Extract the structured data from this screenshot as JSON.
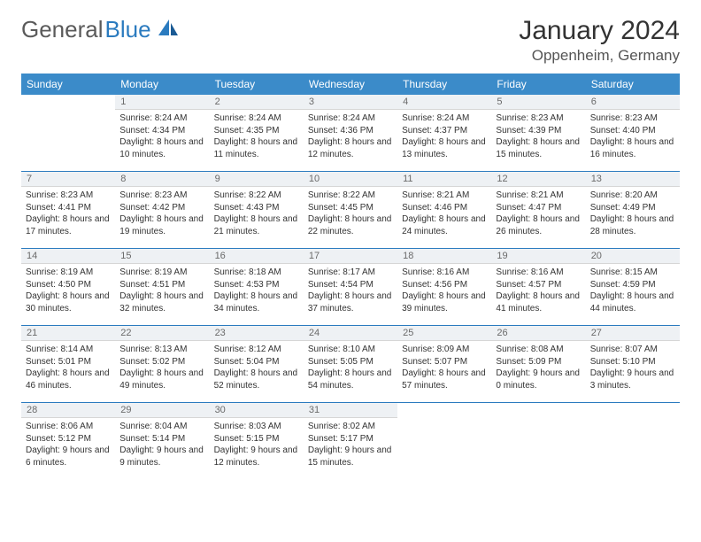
{
  "logo": {
    "part1": "General",
    "part2": "Blue"
  },
  "title": "January 2024",
  "location": "Oppenheim, Germany",
  "weekdays": [
    "Sunday",
    "Monday",
    "Tuesday",
    "Wednesday",
    "Thursday",
    "Friday",
    "Saturday"
  ],
  "colors": {
    "header_bg": "#3b8bc9",
    "divider": "#2b7bbf",
    "daynum_bg": "#eef1f4"
  },
  "weeks": [
    [
      null,
      {
        "n": "1",
        "sr": "Sunrise: 8:24 AM",
        "ss": "Sunset: 4:34 PM",
        "dl": "Daylight: 8 hours and 10 minutes."
      },
      {
        "n": "2",
        "sr": "Sunrise: 8:24 AM",
        "ss": "Sunset: 4:35 PM",
        "dl": "Daylight: 8 hours and 11 minutes."
      },
      {
        "n": "3",
        "sr": "Sunrise: 8:24 AM",
        "ss": "Sunset: 4:36 PM",
        "dl": "Daylight: 8 hours and 12 minutes."
      },
      {
        "n": "4",
        "sr": "Sunrise: 8:24 AM",
        "ss": "Sunset: 4:37 PM",
        "dl": "Daylight: 8 hours and 13 minutes."
      },
      {
        "n": "5",
        "sr": "Sunrise: 8:23 AM",
        "ss": "Sunset: 4:39 PM",
        "dl": "Daylight: 8 hours and 15 minutes."
      },
      {
        "n": "6",
        "sr": "Sunrise: 8:23 AM",
        "ss": "Sunset: 4:40 PM",
        "dl": "Daylight: 8 hours and 16 minutes."
      }
    ],
    [
      {
        "n": "7",
        "sr": "Sunrise: 8:23 AM",
        "ss": "Sunset: 4:41 PM",
        "dl": "Daylight: 8 hours and 17 minutes."
      },
      {
        "n": "8",
        "sr": "Sunrise: 8:23 AM",
        "ss": "Sunset: 4:42 PM",
        "dl": "Daylight: 8 hours and 19 minutes."
      },
      {
        "n": "9",
        "sr": "Sunrise: 8:22 AM",
        "ss": "Sunset: 4:43 PM",
        "dl": "Daylight: 8 hours and 21 minutes."
      },
      {
        "n": "10",
        "sr": "Sunrise: 8:22 AM",
        "ss": "Sunset: 4:45 PM",
        "dl": "Daylight: 8 hours and 22 minutes."
      },
      {
        "n": "11",
        "sr": "Sunrise: 8:21 AM",
        "ss": "Sunset: 4:46 PM",
        "dl": "Daylight: 8 hours and 24 minutes."
      },
      {
        "n": "12",
        "sr": "Sunrise: 8:21 AM",
        "ss": "Sunset: 4:47 PM",
        "dl": "Daylight: 8 hours and 26 minutes."
      },
      {
        "n": "13",
        "sr": "Sunrise: 8:20 AM",
        "ss": "Sunset: 4:49 PM",
        "dl": "Daylight: 8 hours and 28 minutes."
      }
    ],
    [
      {
        "n": "14",
        "sr": "Sunrise: 8:19 AM",
        "ss": "Sunset: 4:50 PM",
        "dl": "Daylight: 8 hours and 30 minutes."
      },
      {
        "n": "15",
        "sr": "Sunrise: 8:19 AM",
        "ss": "Sunset: 4:51 PM",
        "dl": "Daylight: 8 hours and 32 minutes."
      },
      {
        "n": "16",
        "sr": "Sunrise: 8:18 AM",
        "ss": "Sunset: 4:53 PM",
        "dl": "Daylight: 8 hours and 34 minutes."
      },
      {
        "n": "17",
        "sr": "Sunrise: 8:17 AM",
        "ss": "Sunset: 4:54 PM",
        "dl": "Daylight: 8 hours and 37 minutes."
      },
      {
        "n": "18",
        "sr": "Sunrise: 8:16 AM",
        "ss": "Sunset: 4:56 PM",
        "dl": "Daylight: 8 hours and 39 minutes."
      },
      {
        "n": "19",
        "sr": "Sunrise: 8:16 AM",
        "ss": "Sunset: 4:57 PM",
        "dl": "Daylight: 8 hours and 41 minutes."
      },
      {
        "n": "20",
        "sr": "Sunrise: 8:15 AM",
        "ss": "Sunset: 4:59 PM",
        "dl": "Daylight: 8 hours and 44 minutes."
      }
    ],
    [
      {
        "n": "21",
        "sr": "Sunrise: 8:14 AM",
        "ss": "Sunset: 5:01 PM",
        "dl": "Daylight: 8 hours and 46 minutes."
      },
      {
        "n": "22",
        "sr": "Sunrise: 8:13 AM",
        "ss": "Sunset: 5:02 PM",
        "dl": "Daylight: 8 hours and 49 minutes."
      },
      {
        "n": "23",
        "sr": "Sunrise: 8:12 AM",
        "ss": "Sunset: 5:04 PM",
        "dl": "Daylight: 8 hours and 52 minutes."
      },
      {
        "n": "24",
        "sr": "Sunrise: 8:10 AM",
        "ss": "Sunset: 5:05 PM",
        "dl": "Daylight: 8 hours and 54 minutes."
      },
      {
        "n": "25",
        "sr": "Sunrise: 8:09 AM",
        "ss": "Sunset: 5:07 PM",
        "dl": "Daylight: 8 hours and 57 minutes."
      },
      {
        "n": "26",
        "sr": "Sunrise: 8:08 AM",
        "ss": "Sunset: 5:09 PM",
        "dl": "Daylight: 9 hours and 0 minutes."
      },
      {
        "n": "27",
        "sr": "Sunrise: 8:07 AM",
        "ss": "Sunset: 5:10 PM",
        "dl": "Daylight: 9 hours and 3 minutes."
      }
    ],
    [
      {
        "n": "28",
        "sr": "Sunrise: 8:06 AM",
        "ss": "Sunset: 5:12 PM",
        "dl": "Daylight: 9 hours and 6 minutes."
      },
      {
        "n": "29",
        "sr": "Sunrise: 8:04 AM",
        "ss": "Sunset: 5:14 PM",
        "dl": "Daylight: 9 hours and 9 minutes."
      },
      {
        "n": "30",
        "sr": "Sunrise: 8:03 AM",
        "ss": "Sunset: 5:15 PM",
        "dl": "Daylight: 9 hours and 12 minutes."
      },
      {
        "n": "31",
        "sr": "Sunrise: 8:02 AM",
        "ss": "Sunset: 5:17 PM",
        "dl": "Daylight: 9 hours and 15 minutes."
      },
      null,
      null,
      null
    ]
  ]
}
